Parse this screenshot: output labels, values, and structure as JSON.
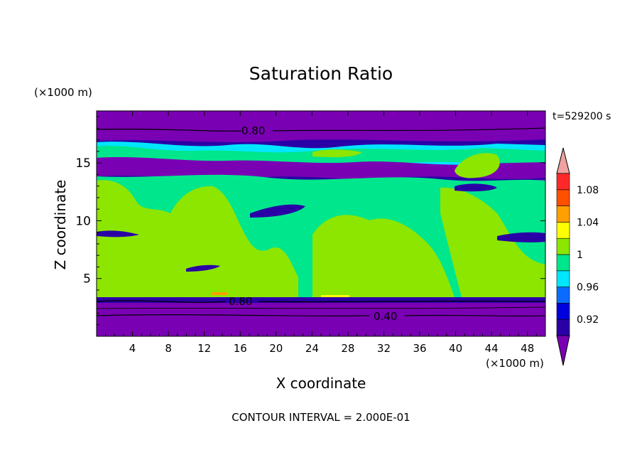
{
  "chart_data": {
    "type": "heatmap",
    "title": "Saturation Ratio",
    "time_label": "t=529200 s",
    "xlabel": "X coordinate",
    "ylabel": "Z coordinate",
    "x_unit": "(×1000 m)",
    "y_unit": "(×1000 m)",
    "xlim": [
      0,
      50
    ],
    "ylim": [
      0,
      19.5
    ],
    "x_ticks": [
      "4",
      "8",
      "12",
      "16",
      "20",
      "24",
      "28",
      "32",
      "36",
      "40",
      "44",
      "48"
    ],
    "y_ticks": [
      "5",
      "10",
      "15"
    ],
    "contour_labels": [
      "0.80",
      "0.80",
      "0.40"
    ],
    "footer": "CONTOUR INTERVAL = 2.000E-01",
    "colorbar": {
      "labels": [
        "1.08",
        "1.04",
        "1",
        "0.96",
        "0.92"
      ],
      "levels": [
        "below",
        "0.92",
        "0.94",
        "0.96",
        "0.98",
        "1.00",
        "1.02",
        "1.04",
        "1.06",
        "1.08",
        "above"
      ],
      "colors": [
        "#7a00b4",
        "#2a00a6",
        "#0000dc",
        "#0a6cff",
        "#00e6ff",
        "#00e68c",
        "#8ce600",
        "#ffff00",
        "#ffa000",
        "#ff5000",
        "#ff2828",
        "#f0a0a0"
      ]
    }
  }
}
